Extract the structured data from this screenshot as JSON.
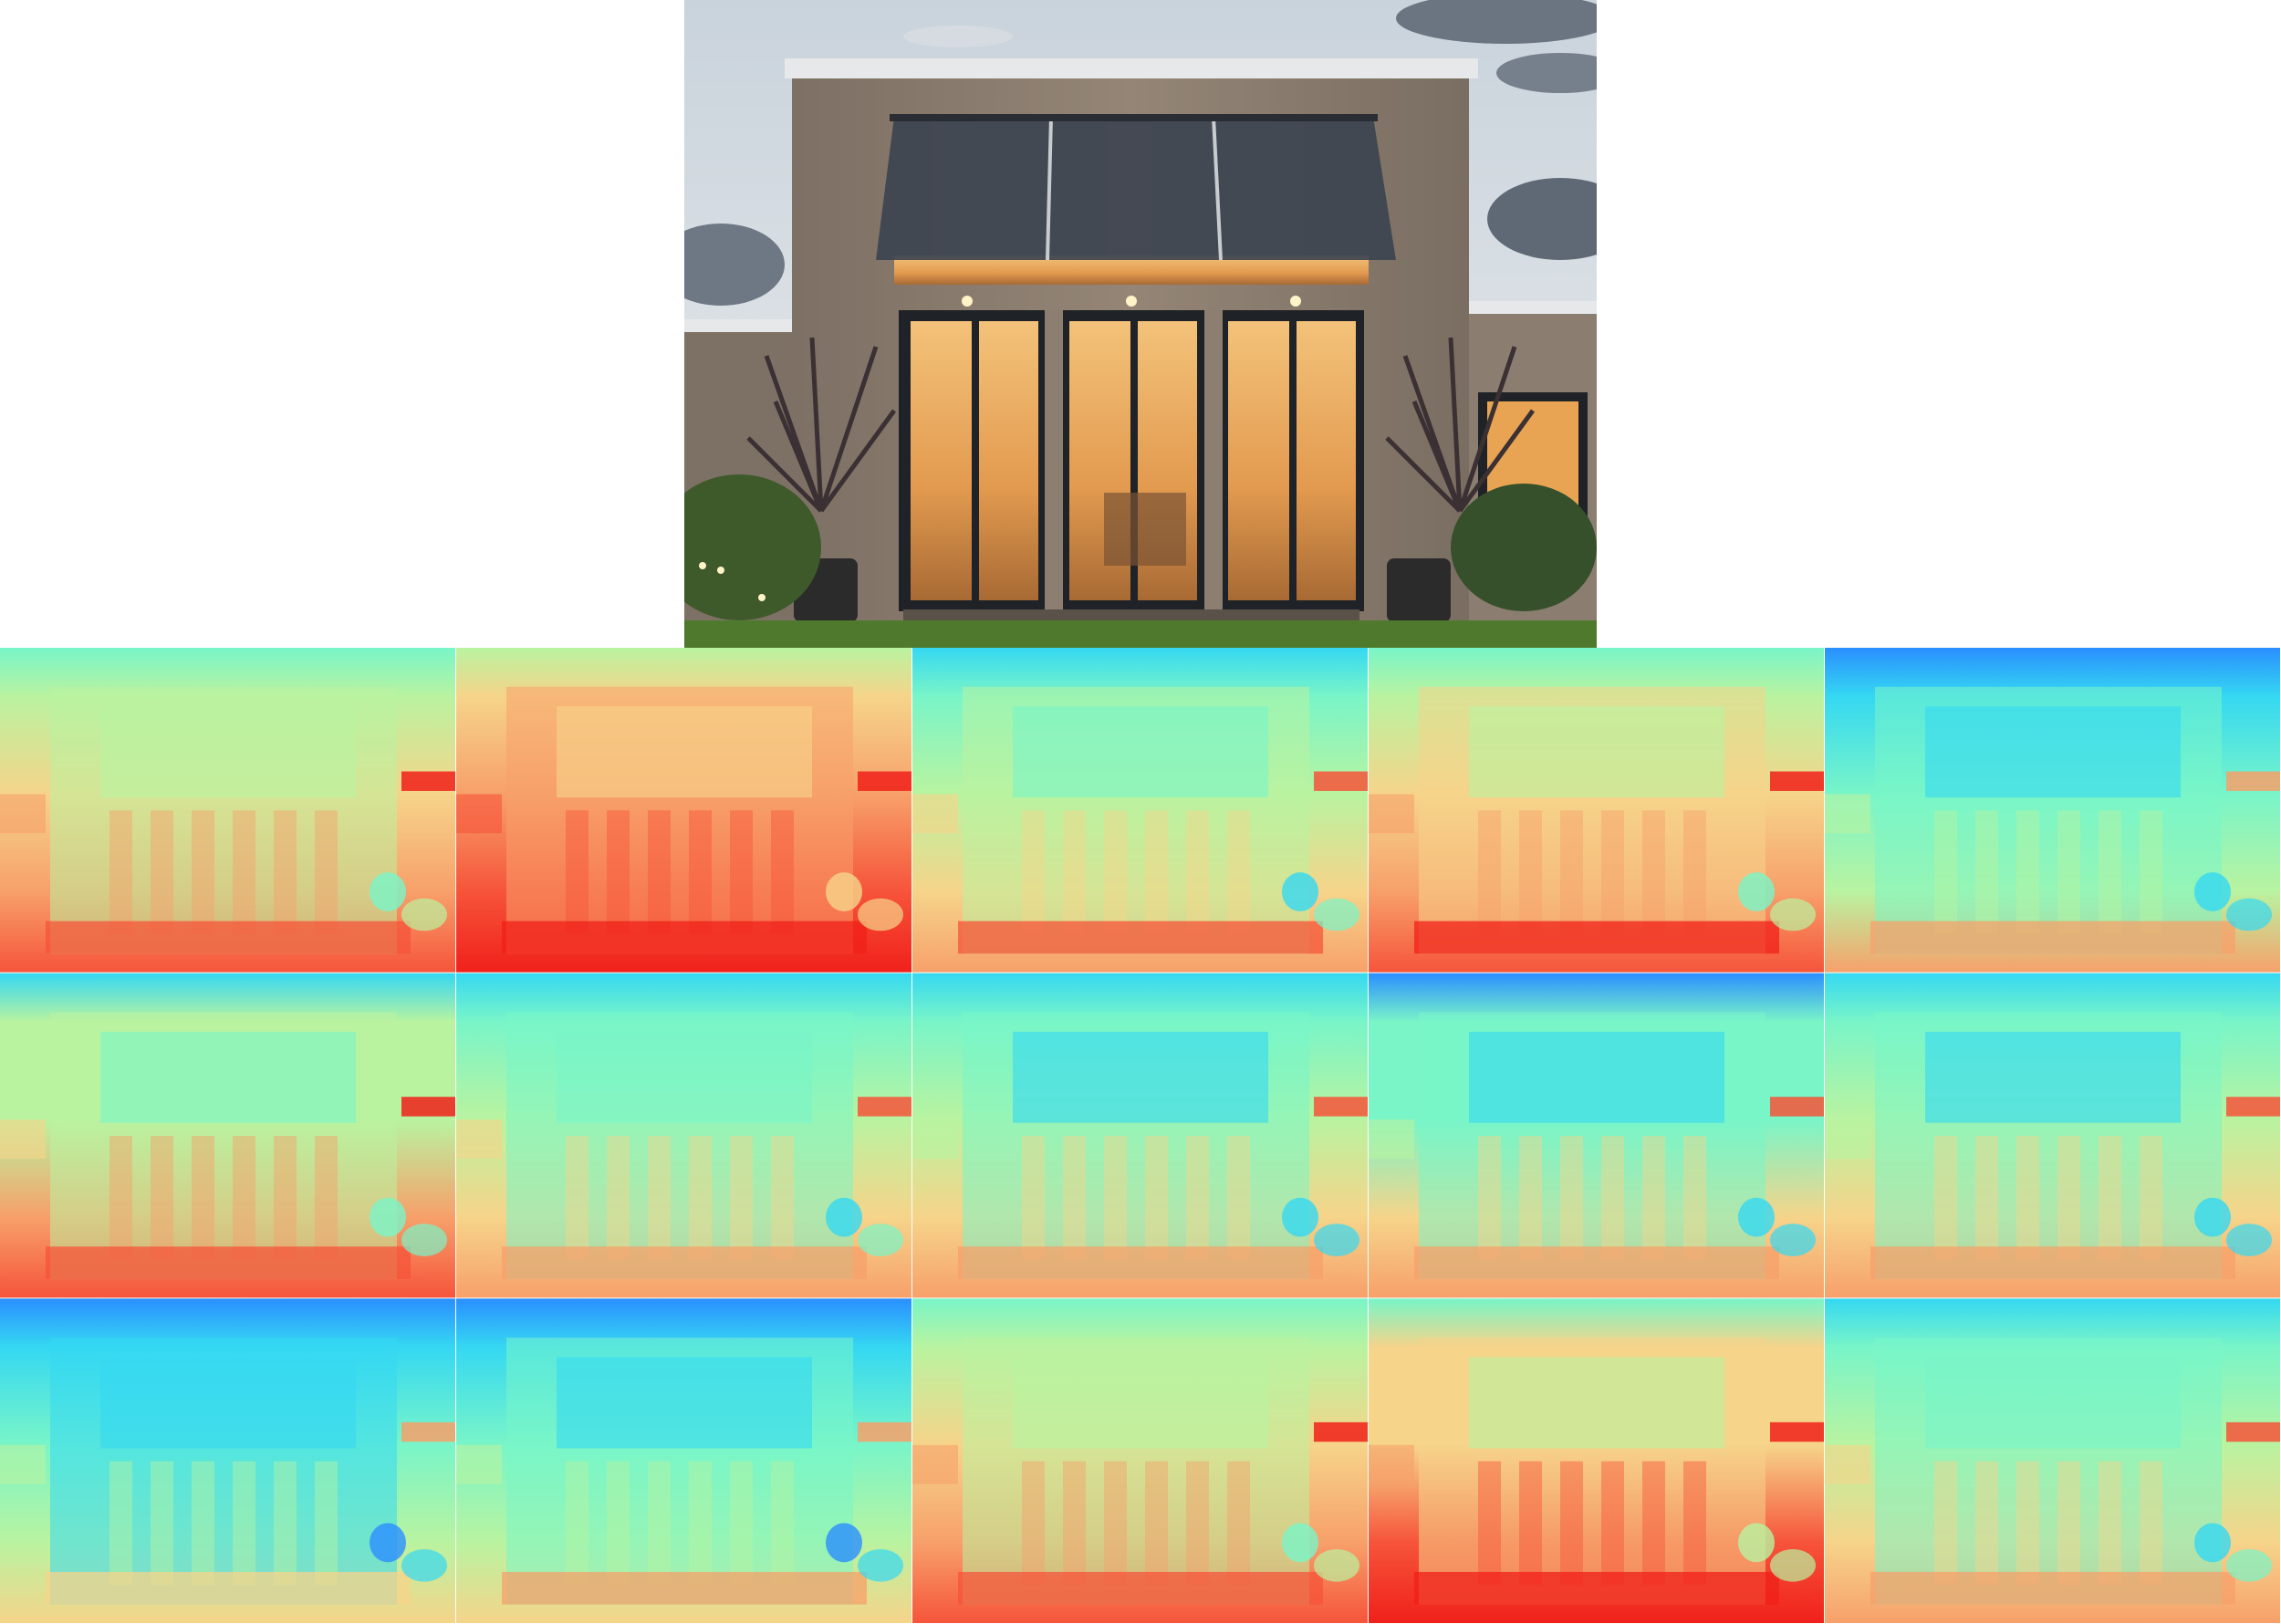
{
  "source_photo": {
    "subject": "modern-house-facade-at-dusk",
    "colors": {
      "sky": "#b9c4cf",
      "cloud": "#5d6774",
      "wall": "#8f8172",
      "wall_shadow": "#6e6258",
      "roof_trim": "#e6e8ea",
      "frame": "#1f2226",
      "interior_glow": "#e9a552",
      "interior_warm": "#f6d08e",
      "awning": "#3d4450",
      "lawn": "#4f7a2e",
      "plant": "#3b3033",
      "pot": "#2b2b2c",
      "light_point": "#fff3c8"
    }
  },
  "depth_maps": {
    "rows": 3,
    "cols": 5,
    "colormap": "jet",
    "palette": [
      "#3b22ff",
      "#2a8fff",
      "#35d8f2",
      "#79f5c8",
      "#b9f3a0",
      "#f6d48a",
      "#f7a06a",
      "#f6543a",
      "#f0201a"
    ],
    "tiles": [
      {
        "bias": 0.55
      },
      {
        "bias": 0.72
      },
      {
        "bias": 0.45
      },
      {
        "bias": 0.58
      },
      {
        "bias": 0.35
      },
      {
        "bias": 0.5
      },
      {
        "bias": 0.42
      },
      {
        "bias": 0.4
      },
      {
        "bias": 0.38
      },
      {
        "bias": 0.4
      },
      {
        "bias": 0.3
      },
      {
        "bias": 0.32
      },
      {
        "bias": 0.55
      },
      {
        "bias": 0.62
      },
      {
        "bias": 0.42
      }
    ]
  }
}
